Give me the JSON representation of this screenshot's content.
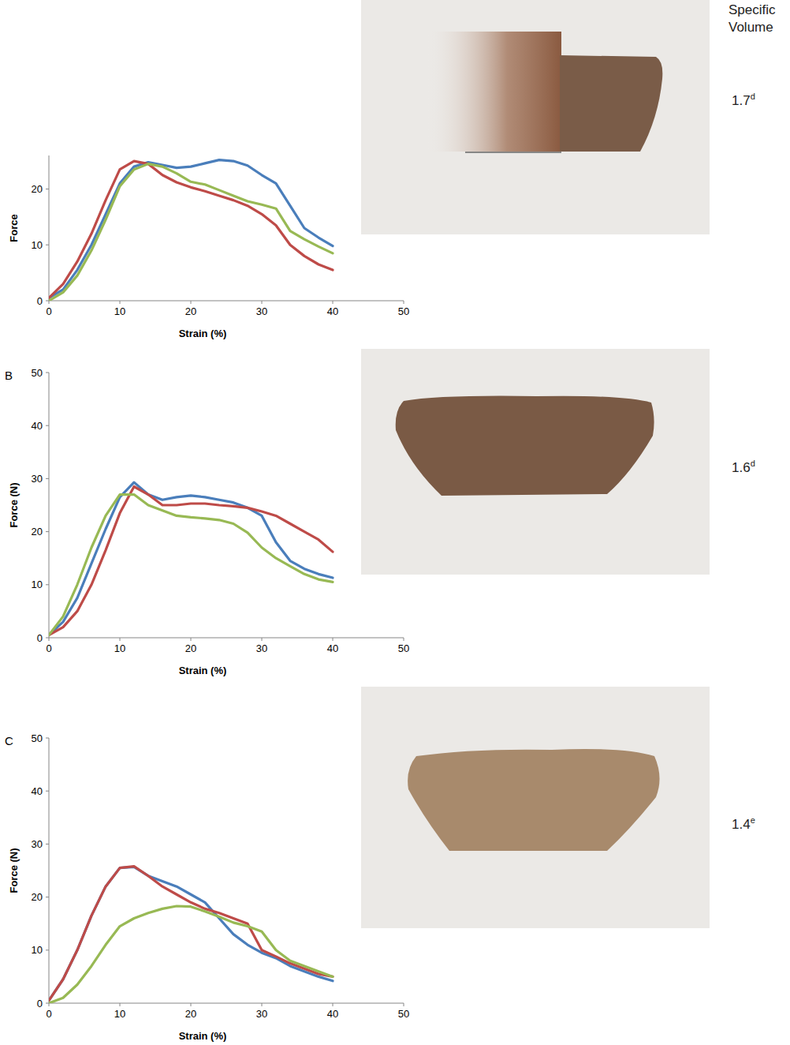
{
  "chart_data": [
    {
      "type": "line",
      "ylabel": "Force",
      "xlabel": "Strain (%)",
      "x": [
        0,
        2,
        4,
        6,
        8,
        10,
        12,
        14,
        16,
        18,
        20,
        22,
        24,
        26,
        28,
        30,
        32,
        34,
        36,
        38,
        40
      ],
      "xlim": [
        0,
        50
      ],
      "xticks": [
        0,
        10,
        20,
        30,
        40,
        50
      ],
      "ylim": [
        0,
        26
      ],
      "yticks": [
        0,
        10,
        20
      ],
      "grid": false,
      "series": [
        {
          "color": "#4a7ebb",
          "values": [
            0.5,
            2,
            5.5,
            10,
            15.5,
            21,
            24,
            24.8,
            24.3,
            23.8,
            24,
            24.6,
            25.2,
            25,
            24.2,
            22.5,
            21,
            17,
            13,
            11.3,
            9.8
          ]
        },
        {
          "color": "#be4b48",
          "values": [
            0.5,
            3,
            7,
            12,
            18,
            23.5,
            25,
            24.5,
            22.5,
            21.2,
            20.3,
            19.6,
            18.8,
            18,
            17,
            15.5,
            13.5,
            10,
            8,
            6.5,
            5.5
          ]
        },
        {
          "color": "#98b954",
          "values": [
            0,
            1.5,
            4.5,
            9,
            14.5,
            20.5,
            23.5,
            24.5,
            24,
            22.8,
            21.3,
            20.8,
            19.8,
            18.8,
            17.8,
            17.2,
            16.5,
            12.5,
            11,
            9.7,
            8.5
          ]
        }
      ],
      "annotations": [
        {
          "text": "Specific Volume"
        },
        {
          "text": "1.7",
          "superscript": "d"
        }
      ]
    },
    {
      "type": "line",
      "panel": "B",
      "ylabel": "Force (N)",
      "xlabel": "Strain (%)",
      "x": [
        0,
        2,
        4,
        6,
        8,
        10,
        12,
        14,
        16,
        18,
        20,
        22,
        24,
        26,
        28,
        30,
        32,
        34,
        36,
        38,
        40
      ],
      "xlim": [
        0,
        50
      ],
      "xticks": [
        0,
        10,
        20,
        30,
        40,
        50
      ],
      "ylim": [
        0,
        50
      ],
      "yticks": [
        0,
        10,
        20,
        30,
        40,
        50
      ],
      "grid": false,
      "series": [
        {
          "color": "#4a7ebb",
          "values": [
            0.5,
            3,
            7.5,
            14,
            20.5,
            26.5,
            29.3,
            27,
            26,
            26.5,
            26.8,
            26.5,
            26,
            25.5,
            24.5,
            23,
            18,
            14.5,
            13,
            12,
            11.3
          ]
        },
        {
          "color": "#be4b48",
          "values": [
            0.5,
            2,
            5,
            10,
            16.5,
            23.5,
            28.5,
            27,
            25,
            25,
            25.3,
            25.3,
            25,
            24.8,
            24.5,
            23.8,
            23,
            21.5,
            20,
            18.5,
            16.2
          ]
        },
        {
          "color": "#98b954",
          "values": [
            0.5,
            4,
            10,
            17,
            23,
            27,
            27,
            25,
            24,
            23,
            22.7,
            22.5,
            22.2,
            21.5,
            19.8,
            17,
            15,
            13.5,
            12,
            11,
            10.5
          ]
        }
      ],
      "annotations": [
        {
          "text": "1.6",
          "superscript": "d"
        }
      ]
    },
    {
      "type": "line",
      "panel": "C",
      "ylabel": "Force (N)",
      "xlabel": "Strain (%)",
      "x": [
        0,
        2,
        4,
        6,
        8,
        10,
        12,
        14,
        16,
        18,
        20,
        22,
        24,
        26,
        28,
        30,
        32,
        34,
        36,
        38,
        40
      ],
      "xlim": [
        0,
        50
      ],
      "xticks": [
        0,
        10,
        20,
        30,
        40,
        50
      ],
      "ylim": [
        0,
        50
      ],
      "yticks": [
        0,
        10,
        20,
        30,
        40,
        50
      ],
      "grid": false,
      "series": [
        {
          "color": "#4a7ebb",
          "values": [
            0.5,
            4.5,
            10,
            16.5,
            22,
            25.5,
            25.7,
            24,
            23,
            22,
            20.5,
            19,
            16,
            13,
            11,
            9.5,
            8.5,
            7,
            6,
            5,
            4.2
          ]
        },
        {
          "color": "#be4b48",
          "values": [
            0.5,
            4.5,
            10,
            16.5,
            22,
            25.5,
            25.8,
            24,
            22,
            20.5,
            19,
            17.8,
            17,
            16,
            15,
            10,
            8.8,
            7.5,
            6.5,
            5.5,
            5
          ]
        },
        {
          "color": "#98b954",
          "values": [
            0,
            1,
            3.5,
            7,
            11,
            14.5,
            16,
            17,
            17.8,
            18.3,
            18.2,
            17.3,
            16.3,
            15.2,
            14.5,
            13.5,
            10,
            8,
            7,
            6,
            5
          ]
        }
      ],
      "annotations": [
        {
          "text": "1.4",
          "superscript": "e"
        }
      ]
    }
  ]
}
